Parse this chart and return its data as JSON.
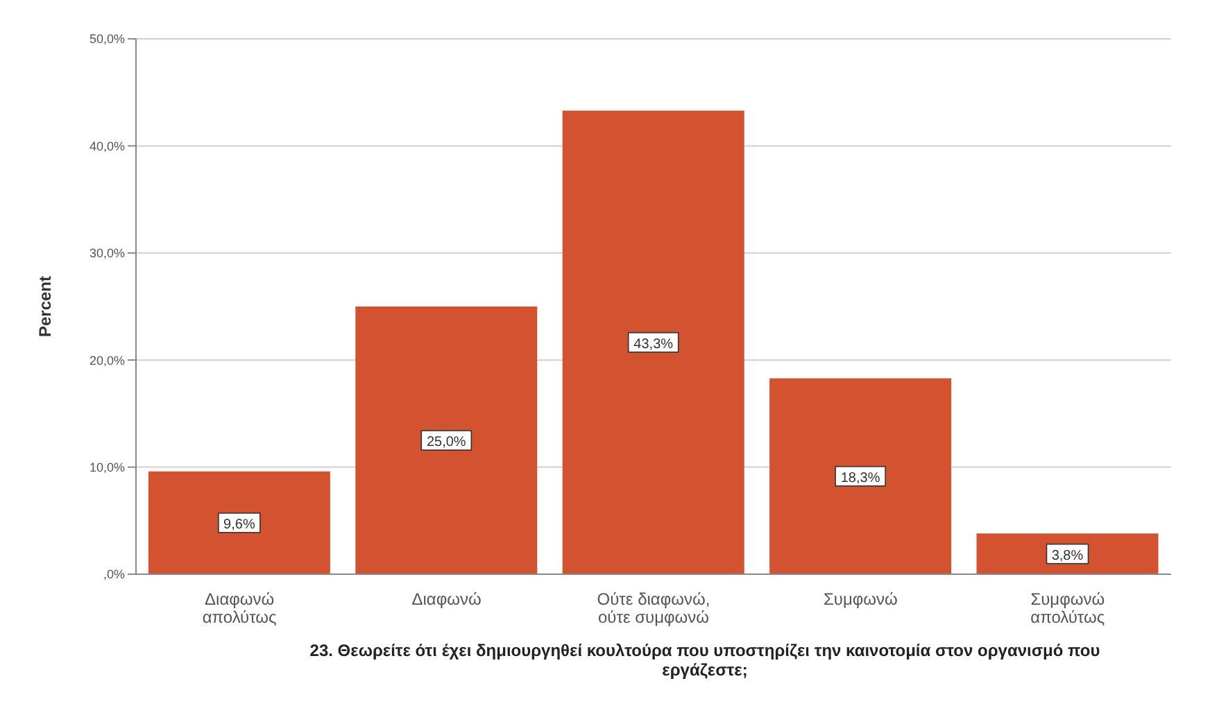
{
  "chart_data": {
    "type": "bar",
    "xlabel": "23. Θεωρείτε ότι έχει δημιουργηθεί κουλτούρα που υποστηρίζει την καινοτομία στον οργανισμό που εργάζεστε;",
    "ylabel": "Percent",
    "categories": [
      "Διαφωνώ απολύτως",
      "Διαφωνώ",
      "Ούτε διαφωνώ, ούτε συμφωνώ",
      "Συμφωνώ",
      "Συμφωνώ απολύτως"
    ],
    "values": [
      9.6,
      25.0,
      43.3,
      18.3,
      3.8
    ],
    "value_labels": [
      "9,6%",
      "25,0%",
      "43,3%",
      "18,3%",
      "3,8%"
    ],
    "color": "#d35230",
    "ylim": [
      0,
      50
    ],
    "yticks": [
      {
        "value": 0,
        "label": ",0%"
      },
      {
        "value": 10,
        "label": "10,0%"
      },
      {
        "value": 20,
        "label": "20,0%"
      },
      {
        "value": 30,
        "label": "30,0%"
      },
      {
        "value": 40,
        "label": "40,0%"
      },
      {
        "value": 50,
        "label": "50,0%"
      }
    ],
    "grid": "y"
  }
}
